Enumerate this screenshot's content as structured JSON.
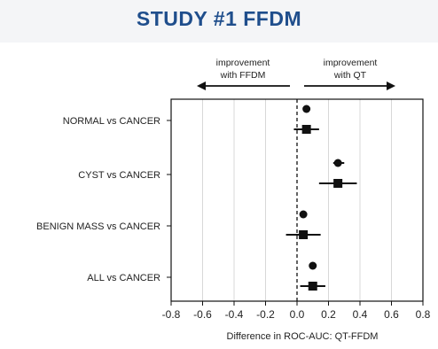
{
  "page": {
    "title": "STUDY #1 FFDM"
  },
  "chart_data": {
    "type": "forest",
    "xlabel": "Difference in ROC-AUC: QT-FFDM",
    "xlim": [
      -0.8,
      0.8
    ],
    "xticks": [
      -0.8,
      -0.6,
      -0.4,
      -0.2,
      0.0,
      0.2,
      0.4,
      0.6,
      0.8
    ],
    "xtick_labels": [
      "-0.8",
      "-0.6",
      "-0.4",
      "-0.2",
      "0.0",
      "0.2",
      "0.4",
      "0.6",
      "0.8"
    ],
    "grid": "vertical",
    "reference_line": 0.0,
    "annotations": [
      {
        "lines": [
          "improvement",
          "with FFDM"
        ],
        "direction": "left"
      },
      {
        "lines": [
          "improvement",
          "with QT"
        ],
        "direction": "right"
      }
    ],
    "categories": [
      "NORMAL vs CANCER",
      "CYST vs CANCER",
      "BENIGN MASS vs CANCER",
      "ALL vs CANCER"
    ],
    "series": [
      {
        "marker": "circle",
        "values": [
          0.06,
          0.26,
          0.04,
          0.1
        ],
        "ci_low": [
          0.04,
          0.23,
          null,
          null
        ],
        "ci_high": [
          0.08,
          0.3,
          null,
          null
        ]
      },
      {
        "marker": "square",
        "values": [
          0.06,
          0.26,
          0.04,
          0.1
        ],
        "ci_low": [
          -0.02,
          0.14,
          -0.07,
          0.02
        ],
        "ci_high": [
          0.14,
          0.38,
          0.15,
          0.18
        ]
      }
    ]
  }
}
